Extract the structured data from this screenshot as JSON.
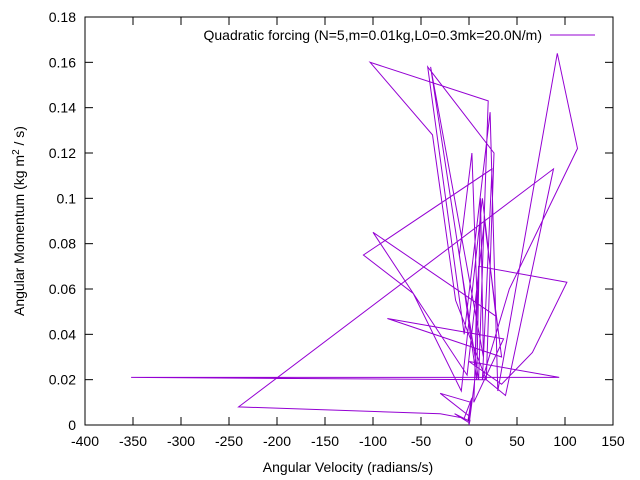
{
  "chart_data": {
    "type": "line",
    "title": "",
    "xlabel": "Angular Velocity (radians/s)",
    "ylabel": "Angular Momentum (kg m² / s)",
    "ylabel_parts": [
      "Angular Momentum (kg m",
      "2",
      " / s)"
    ],
    "xlim": [
      -400,
      150
    ],
    "ylim": [
      0,
      0.18
    ],
    "xticks": [
      -400,
      -350,
      -300,
      -250,
      -200,
      -150,
      -100,
      -50,
      0,
      50,
      100,
      150
    ],
    "yticks": [
      0,
      0.02,
      0.04,
      0.06,
      0.08,
      0.1,
      0.12,
      0.14,
      0.16,
      0.18
    ],
    "xtick_labels": [
      "-400",
      "-350",
      "-300",
      "-250",
      "-200",
      "-150",
      "-100",
      "-50",
      "0",
      "50",
      "100",
      "150"
    ],
    "ytick_labels": [
      "0",
      "0.02",
      "0.04",
      "0.06",
      "0.08",
      "0.1",
      "0.12",
      "0.14",
      "0.16",
      "0.18"
    ],
    "grid": false,
    "legend_position": "top-right",
    "series_color": "#9400d3",
    "series": [
      {
        "name": "Quadratic forcing (N=5,m=0.01kg,L0=0.3mk=20.0N/m)",
        "x": [
          0,
          6,
          8,
          3,
          -10,
          8,
          12,
          15,
          -40,
          -12,
          10,
          20,
          -103,
          -38,
          -14,
          18,
          26,
          -43,
          -5,
          22,
          30,
          92,
          113,
          42,
          14,
          24,
          -110,
          -58,
          -8,
          14,
          28,
          -100,
          -2,
          16,
          34,
          -85,
          36,
          5,
          10,
          102,
          66,
          34,
          0,
          94,
          -352,
          18,
          38,
          88,
          -240,
          -30,
          -5,
          3,
          0,
          -15,
          -1,
          2,
          -30,
          0,
          1,
          0
        ],
        "y": [
          0,
          0.02,
          0.06,
          0.12,
          0.075,
          0.02,
          0.1,
          0.03,
          0.158,
          0.08,
          0.02,
          0.143,
          0.16,
          0.128,
          0.055,
          0.02,
          0.12,
          0.158,
          0.04,
          0.138,
          0.015,
          0.164,
          0.122,
          0.06,
          0.02,
          0.113,
          0.075,
          0.058,
          0.015,
          0.1,
          0.048,
          0.085,
          0.022,
          0.09,
          0.03,
          0.047,
          0.038,
          0.01,
          0.07,
          0.063,
          0.032,
          0.018,
          0.028,
          0.021,
          0.021,
          0.02,
          0.013,
          0.113,
          0.008,
          0.005,
          0.003,
          0.012,
          0.001,
          0.005,
          0.002,
          0.01,
          0.014,
          0.004,
          0.002,
          0.0
        ]
      }
    ]
  }
}
